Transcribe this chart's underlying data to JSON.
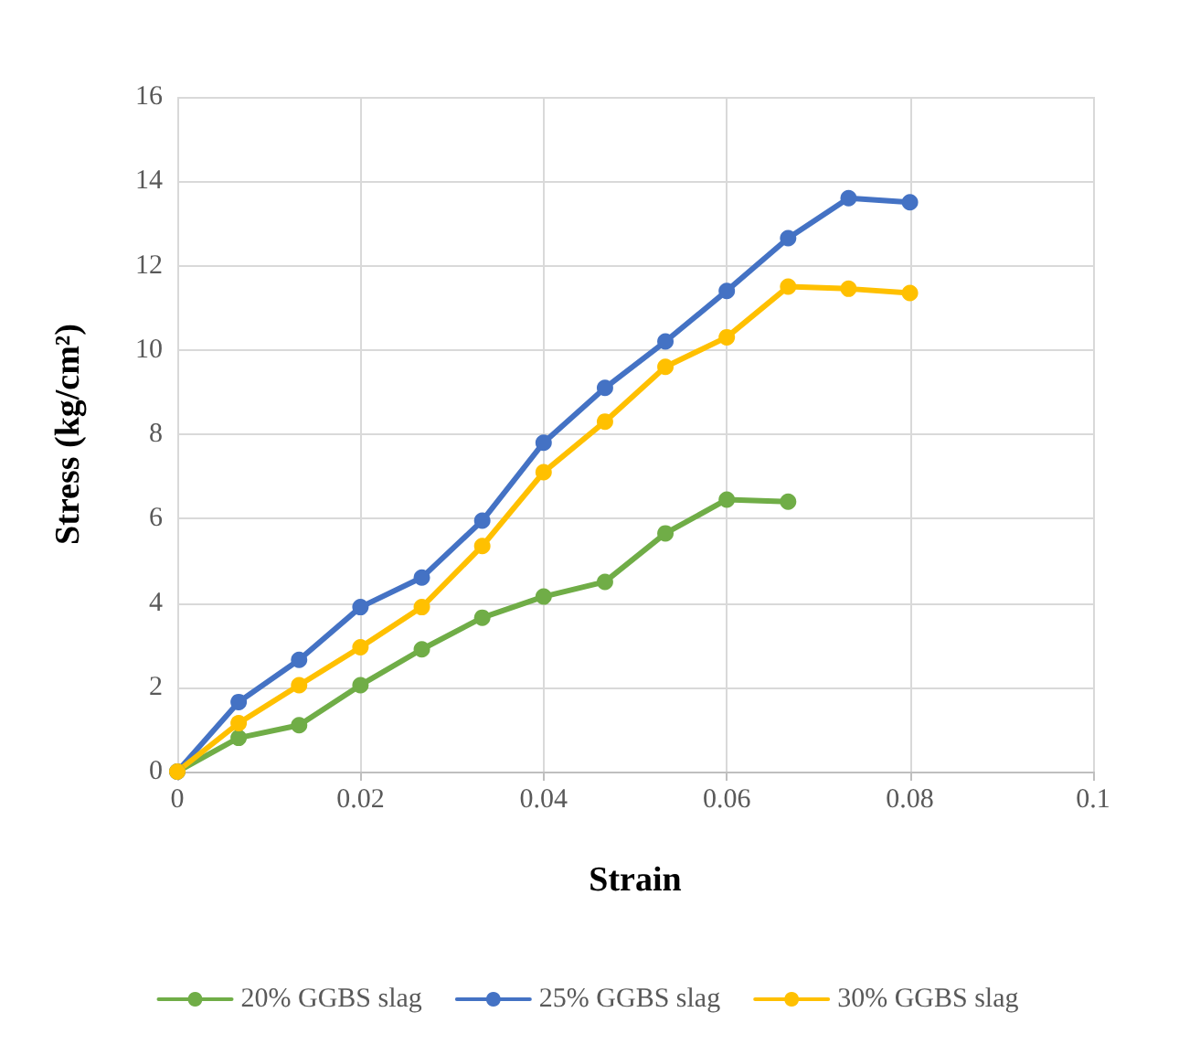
{
  "chart_data": {
    "type": "line",
    "xlabel": "Strain",
    "ylabel": "Stress (kg/cm²)",
    "xlim": [
      0,
      0.1
    ],
    "xticks": [
      0,
      0.02,
      0.04,
      0.06,
      0.08,
      0.1
    ],
    "ylim": [
      0,
      16
    ],
    "yticks": [
      0,
      2,
      4,
      6,
      8,
      10,
      12,
      14,
      16
    ],
    "grid": true,
    "legend": "bottom",
    "marker": "circle",
    "line_style": "solid",
    "series": [
      {
        "name": "20% GGBS slag",
        "color": "#70ad47",
        "x": [
          0,
          0.0067,
          0.0133,
          0.02,
          0.0267,
          0.0333,
          0.04,
          0.0467,
          0.0533,
          0.06,
          0.0667
        ],
        "values": [
          0,
          0.8,
          1.1,
          2.05,
          2.9,
          3.65,
          4.15,
          4.5,
          5.65,
          6.45,
          6.4
        ]
      },
      {
        "name": "25% GGBS slag",
        "color": "#4472c4",
        "x": [
          0,
          0.0067,
          0.0133,
          0.02,
          0.0267,
          0.0333,
          0.04,
          0.0467,
          0.0533,
          0.06,
          0.0667,
          0.0733,
          0.08
        ],
        "values": [
          0,
          1.65,
          2.65,
          3.9,
          4.6,
          5.95,
          7.8,
          9.1,
          10.2,
          11.4,
          12.65,
          13.6,
          13.5
        ]
      },
      {
        "name": "30% GGBS slag",
        "color": "#ffc000",
        "x": [
          0,
          0.0067,
          0.0133,
          0.02,
          0.0267,
          0.0333,
          0.04,
          0.0467,
          0.0533,
          0.06,
          0.0667,
          0.0733,
          0.08
        ],
        "values": [
          0,
          1.15,
          2.05,
          2.95,
          3.9,
          5.35,
          7.1,
          8.3,
          9.6,
          10.3,
          11.5,
          11.45,
          11.35
        ]
      }
    ]
  }
}
